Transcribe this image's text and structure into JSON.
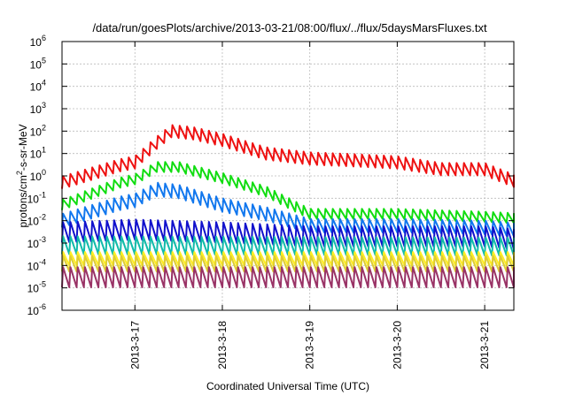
{
  "chart_data": {
    "type": "line",
    "title": "/data/run/goesPlots/archive/2013-03-21/08:00/flux/../flux/5daysMarsFluxes.txt",
    "xlabel": "Coordinated Universal Time (UTC)",
    "ylabel": {
      "pre": "protons/cm",
      "sup": "2",
      "post": "-s-sr-MeV"
    },
    "y_scale": "log",
    "ylim": [
      1e-06,
      1000000.0
    ],
    "xlim": [
      "2013-03-16T04:00",
      "2013-03-21T08:00"
    ],
    "grid": true,
    "legend": "none",
    "y_ticks": [
      {
        "value": 1e-06,
        "base": "10",
        "exp": "-6"
      },
      {
        "value": 1e-05,
        "base": "10",
        "exp": "-5"
      },
      {
        "value": 0.0001,
        "base": "10",
        "exp": "-4"
      },
      {
        "value": 0.001,
        "base": "10",
        "exp": "-3"
      },
      {
        "value": 0.01,
        "base": "10",
        "exp": "-2"
      },
      {
        "value": 0.1,
        "base": "10",
        "exp": "-1"
      },
      {
        "value": 1,
        "base": "10",
        "exp": "0"
      },
      {
        "value": 10,
        "base": "10",
        "exp": "1"
      },
      {
        "value": 100,
        "base": "10",
        "exp": "2"
      },
      {
        "value": 1000,
        "base": "10",
        "exp": "3"
      },
      {
        "value": 10000,
        "base": "10",
        "exp": "4"
      },
      {
        "value": 100000,
        "base": "10",
        "exp": "5"
      },
      {
        "value": 1000000,
        "base": "10",
        "exp": "6"
      }
    ],
    "x_ticks": [
      {
        "label": "2013-3-17",
        "day": "2013-03-17T00:00"
      },
      {
        "label": "2013-3-18",
        "day": "2013-03-18T00:00"
      },
      {
        "label": "2013-3-19",
        "day": "2013-03-19T00:00"
      },
      {
        "label": "2013-3-20",
        "day": "2013-03-20T00:00"
      },
      {
        "label": "2013-3-21",
        "day": "2013-03-21T00:00"
      }
    ],
    "sawtooth_period_hours": 2,
    "series": [
      {
        "color": "#ee1111",
        "x": [
          "2013-03-16T04:00",
          "2013-03-16T20:00",
          "2013-03-17T00:00",
          "2013-03-17T06:00",
          "2013-03-17T10:00",
          "2013-03-17T16:00",
          "2013-03-18T00:00",
          "2013-03-18T12:00",
          "2013-03-19T00:00",
          "2013-03-19T12:00",
          "2013-03-20T00:00",
          "2013-03-20T12:00",
          "2013-03-21T00:00",
          "2013-03-21T08:00"
        ],
        "y": [
          0.5,
          3,
          4,
          30,
          100,
          80,
          40,
          10,
          6,
          5,
          4,
          2,
          2,
          0.6
        ]
      },
      {
        "color": "#11dd11",
        "x": [
          "2013-03-16T04:00",
          "2013-03-16T20:00",
          "2013-03-17T00:00",
          "2013-03-17T06:00",
          "2013-03-17T12:00",
          "2013-03-18T00:00",
          "2013-03-18T12:00",
          "2013-03-19T00:00",
          "2013-03-19T12:00",
          "2013-03-20T00:00",
          "2013-03-21T00:00",
          "2013-03-21T08:00"
        ],
        "y": [
          0.05,
          0.5,
          0.7,
          2.5,
          2.5,
          0.8,
          0.2,
          0.02,
          0.02,
          0.02,
          0.015,
          0.013
        ]
      },
      {
        "color": "#1177ee",
        "x": [
          "2013-03-16T04:00",
          "2013-03-16T20:00",
          "2013-03-17T00:00",
          "2013-03-17T06:00",
          "2013-03-17T12:00",
          "2013-03-18T00:00",
          "2013-03-18T12:00",
          "2013-03-19T00:00",
          "2013-03-19T12:00",
          "2013-03-20T00:00",
          "2013-03-21T00:00",
          "2013-03-21T08:00"
        ],
        "y": [
          0.01,
          0.06,
          0.08,
          0.25,
          0.2,
          0.05,
          0.02,
          0.006,
          0.006,
          0.006,
          0.005,
          0.004
        ]
      },
      {
        "color": "#1111cc",
        "x": [
          "2013-03-16T04:00",
          "2013-03-17T00:00",
          "2013-03-18T00:00",
          "2013-03-19T00:00",
          "2013-03-20T00:00",
          "2013-03-21T00:00",
          "2013-03-21T08:00"
        ],
        "y": [
          0.003,
          0.004,
          0.003,
          0.002,
          0.002,
          0.002,
          0.0015
        ]
      },
      {
        "color": "#11bbaa",
        "x": [
          "2013-03-16T04:00",
          "2013-03-21T08:00"
        ],
        "y": [
          0.0008,
          0.0007
        ]
      },
      {
        "color": "#ffee22",
        "x": [
          "2013-03-16T04:00",
          "2013-03-21T08:00"
        ],
        "y": [
          0.0002,
          0.0002
        ]
      },
      {
        "color": "#ddcc33",
        "x": [
          "2013-03-16T04:00",
          "2013-03-21T08:00"
        ],
        "y": [
          0.00012,
          0.00012
        ]
      },
      {
        "color": "#993366",
        "x": [
          "2013-03-16T04:00",
          "2013-03-21T08:00"
        ],
        "y": [
          3e-05,
          3e-05
        ]
      }
    ]
  }
}
